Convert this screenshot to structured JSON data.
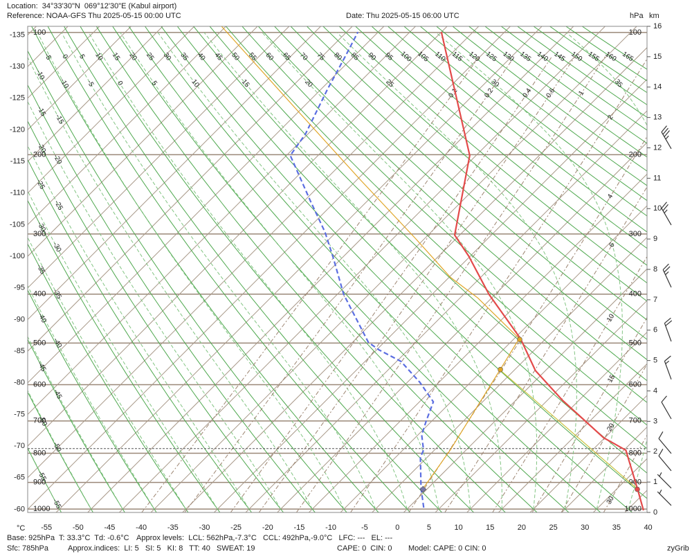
{
  "chart_data": {
    "type": "skewt",
    "location": "Location:  34°33'30\"N  069°12'30\"E (Kabul airport)",
    "reference": "Reference: NOAA-GFS Thu 2025-05-15 00:00 UTC",
    "date": "Date: Thu 2025-05-15 06:00 UTC",
    "x_unit": "°C",
    "pressure_unit": "hPa",
    "y_unit": "km",
    "xlim": [
      -59.5,
      38.5
    ],
    "xticks": [
      -55,
      -50,
      -45,
      -40,
      -35,
      -30,
      -25,
      -20,
      -15,
      -10,
      -5,
      0,
      5,
      10,
      15,
      20,
      25,
      30,
      35,
      40
    ],
    "isotherm_ticks": [
      -135,
      -130,
      -125,
      -120,
      -115,
      -110,
      -105,
      -100,
      -95,
      -90,
      -85,
      -80,
      -75,
      -70,
      -65,
      -60
    ],
    "skew_deg": 45,
    "ylim": [
      0,
      16
    ],
    "yticks": [
      0,
      1,
      2,
      3,
      4,
      5,
      6,
      7,
      8,
      9,
      10,
      11,
      12,
      13,
      14,
      15,
      16
    ],
    "pressure_ticks": [
      100,
      200,
      300,
      400,
      500,
      600,
      700,
      800,
      900,
      1000
    ],
    "surface_pressure": 785,
    "dry_adiabats": [
      -55,
      -50,
      -45,
      -40,
      -35,
      -30,
      -25,
      -20,
      -15,
      -10,
      -5,
      0,
      5,
      10,
      15,
      20,
      25,
      30,
      35,
      40,
      45,
      50,
      55,
      60,
      65,
      70,
      75,
      80,
      85,
      90,
      95,
      100,
      105,
      110,
      115,
      120,
      125,
      130,
      135,
      140,
      145,
      150,
      155,
      160,
      165
    ],
    "moist_adiabats": [
      -55,
      -50,
      -45,
      -40,
      -35,
      -30,
      -25,
      -20,
      -15,
      -10,
      -5,
      0,
      5,
      10,
      15,
      20,
      25,
      30,
      35
    ],
    "mixing_ratios": [
      0.1,
      0.2,
      0.4,
      0.6,
      1,
      2,
      4,
      6,
      10,
      15,
      20,
      30
    ],
    "colors": {
      "isotherm": "#a89888",
      "pressure": "#9a8878",
      "dry": "#4ea84e",
      "moist": "#82c482",
      "mixing": "#9c8470",
      "surface": "#555555",
      "frame": "#888888"
    },
    "temperature": {
      "color": "#e34a4a",
      "heights_km": [
        0.07,
        0.77,
        2.05,
        2.46,
        3.69,
        4.67,
        5.72,
        7.18,
        8.43,
        9.13,
        11.75,
        15.81
      ],
      "values": [
        37.6,
        33.3,
        25.3,
        19.8,
        7.4,
        -1.6,
        -9.0,
        -21.0,
        -30.2,
        -35.8,
        -46.0,
        -70.0
      ]
    },
    "dewpoint": {
      "color": "#5b6ee1",
      "heights_km": [
        0.16,
        0.8,
        1.82,
        2.05,
        2.55,
        3.01,
        3.64,
        4.28,
        4.97,
        5.35,
        5.6,
        7.18,
        8.38,
        9.23,
        10.25,
        11.75,
        12.46,
        13.94,
        15.03,
        15.81
      ],
      "values": [
        2.4,
        -1.1,
        -6.1,
        -6.7,
        -9.4,
        -10.9,
        -12.8,
        -18.0,
        -24.3,
        -29.6,
        -32.5,
        -44.0,
        -51.4,
        -56.8,
        -64.0,
        -74.4,
        -75.4,
        -79.0,
        -81.4,
        -83.2
      ]
    },
    "parcel": {
      "color": "#e0a526",
      "heights_km": [
        0.77,
        2.05,
        4.69,
        5.72,
        7.06,
        7.74,
        9.0,
        10.93,
        13.21,
        15.99
      ],
      "values": [
        -0.7,
        -2.5,
        -7.3,
        -9.2,
        -22.2,
        -29.8,
        -41.3,
        -59.3,
        -80.2,
        -105.6
      ]
    },
    "base_adiabat": {
      "color": "#c9c23c",
      "heights_km": [
        0.77,
        4.69
      ],
      "values": [
        33.3,
        -7.3
      ]
    },
    "markers": [
      {
        "p": 562,
        "t": -7.3,
        "color": "#e0a526",
        "shape": "circle"
      },
      {
        "p": 492,
        "t": -9.0,
        "color": "#e0a526",
        "shape": "circle"
      },
      {
        "p": 925,
        "t": 33.3,
        "color": "#e34a4a",
        "shape": "circle"
      },
      {
        "p": 925,
        "t": -0.6,
        "color": "#7878a8",
        "shape": "diamond"
      }
    ],
    "winds": {
      "color": "#333333",
      "heights_km": [
        11.97,
        9.46,
        7.41,
        5.63,
        4.38,
        3.08,
        1.94,
        1.37,
        0.8,
        0.23
      ],
      "speed_kt": [
        35,
        25,
        25,
        20,
        15,
        10,
        10,
        10,
        5,
        5
      ],
      "direction_deg": [
        330,
        330,
        335,
        340,
        340,
        330,
        320,
        320,
        315,
        315
      ]
    },
    "base": "Base: 925hPa  T: 33.3°C  Td: -0.6°C",
    "levels": "Approx levels:  LCL: 562hPa,-7.3°C   CCL: 492hPa,-9.0°C   LFC: ---   EL: ---",
    "surface": "Sfc: 785hPa",
    "indices": "Approx.indices:  LI: 5   SI: 5   KI: 8   TT: 40   SWEAT: 19",
    "cape": "CAPE: 0  CIN: 0",
    "model": "Model: CAPE: 0 CIN: 0",
    "credit": "zyGrib"
  }
}
